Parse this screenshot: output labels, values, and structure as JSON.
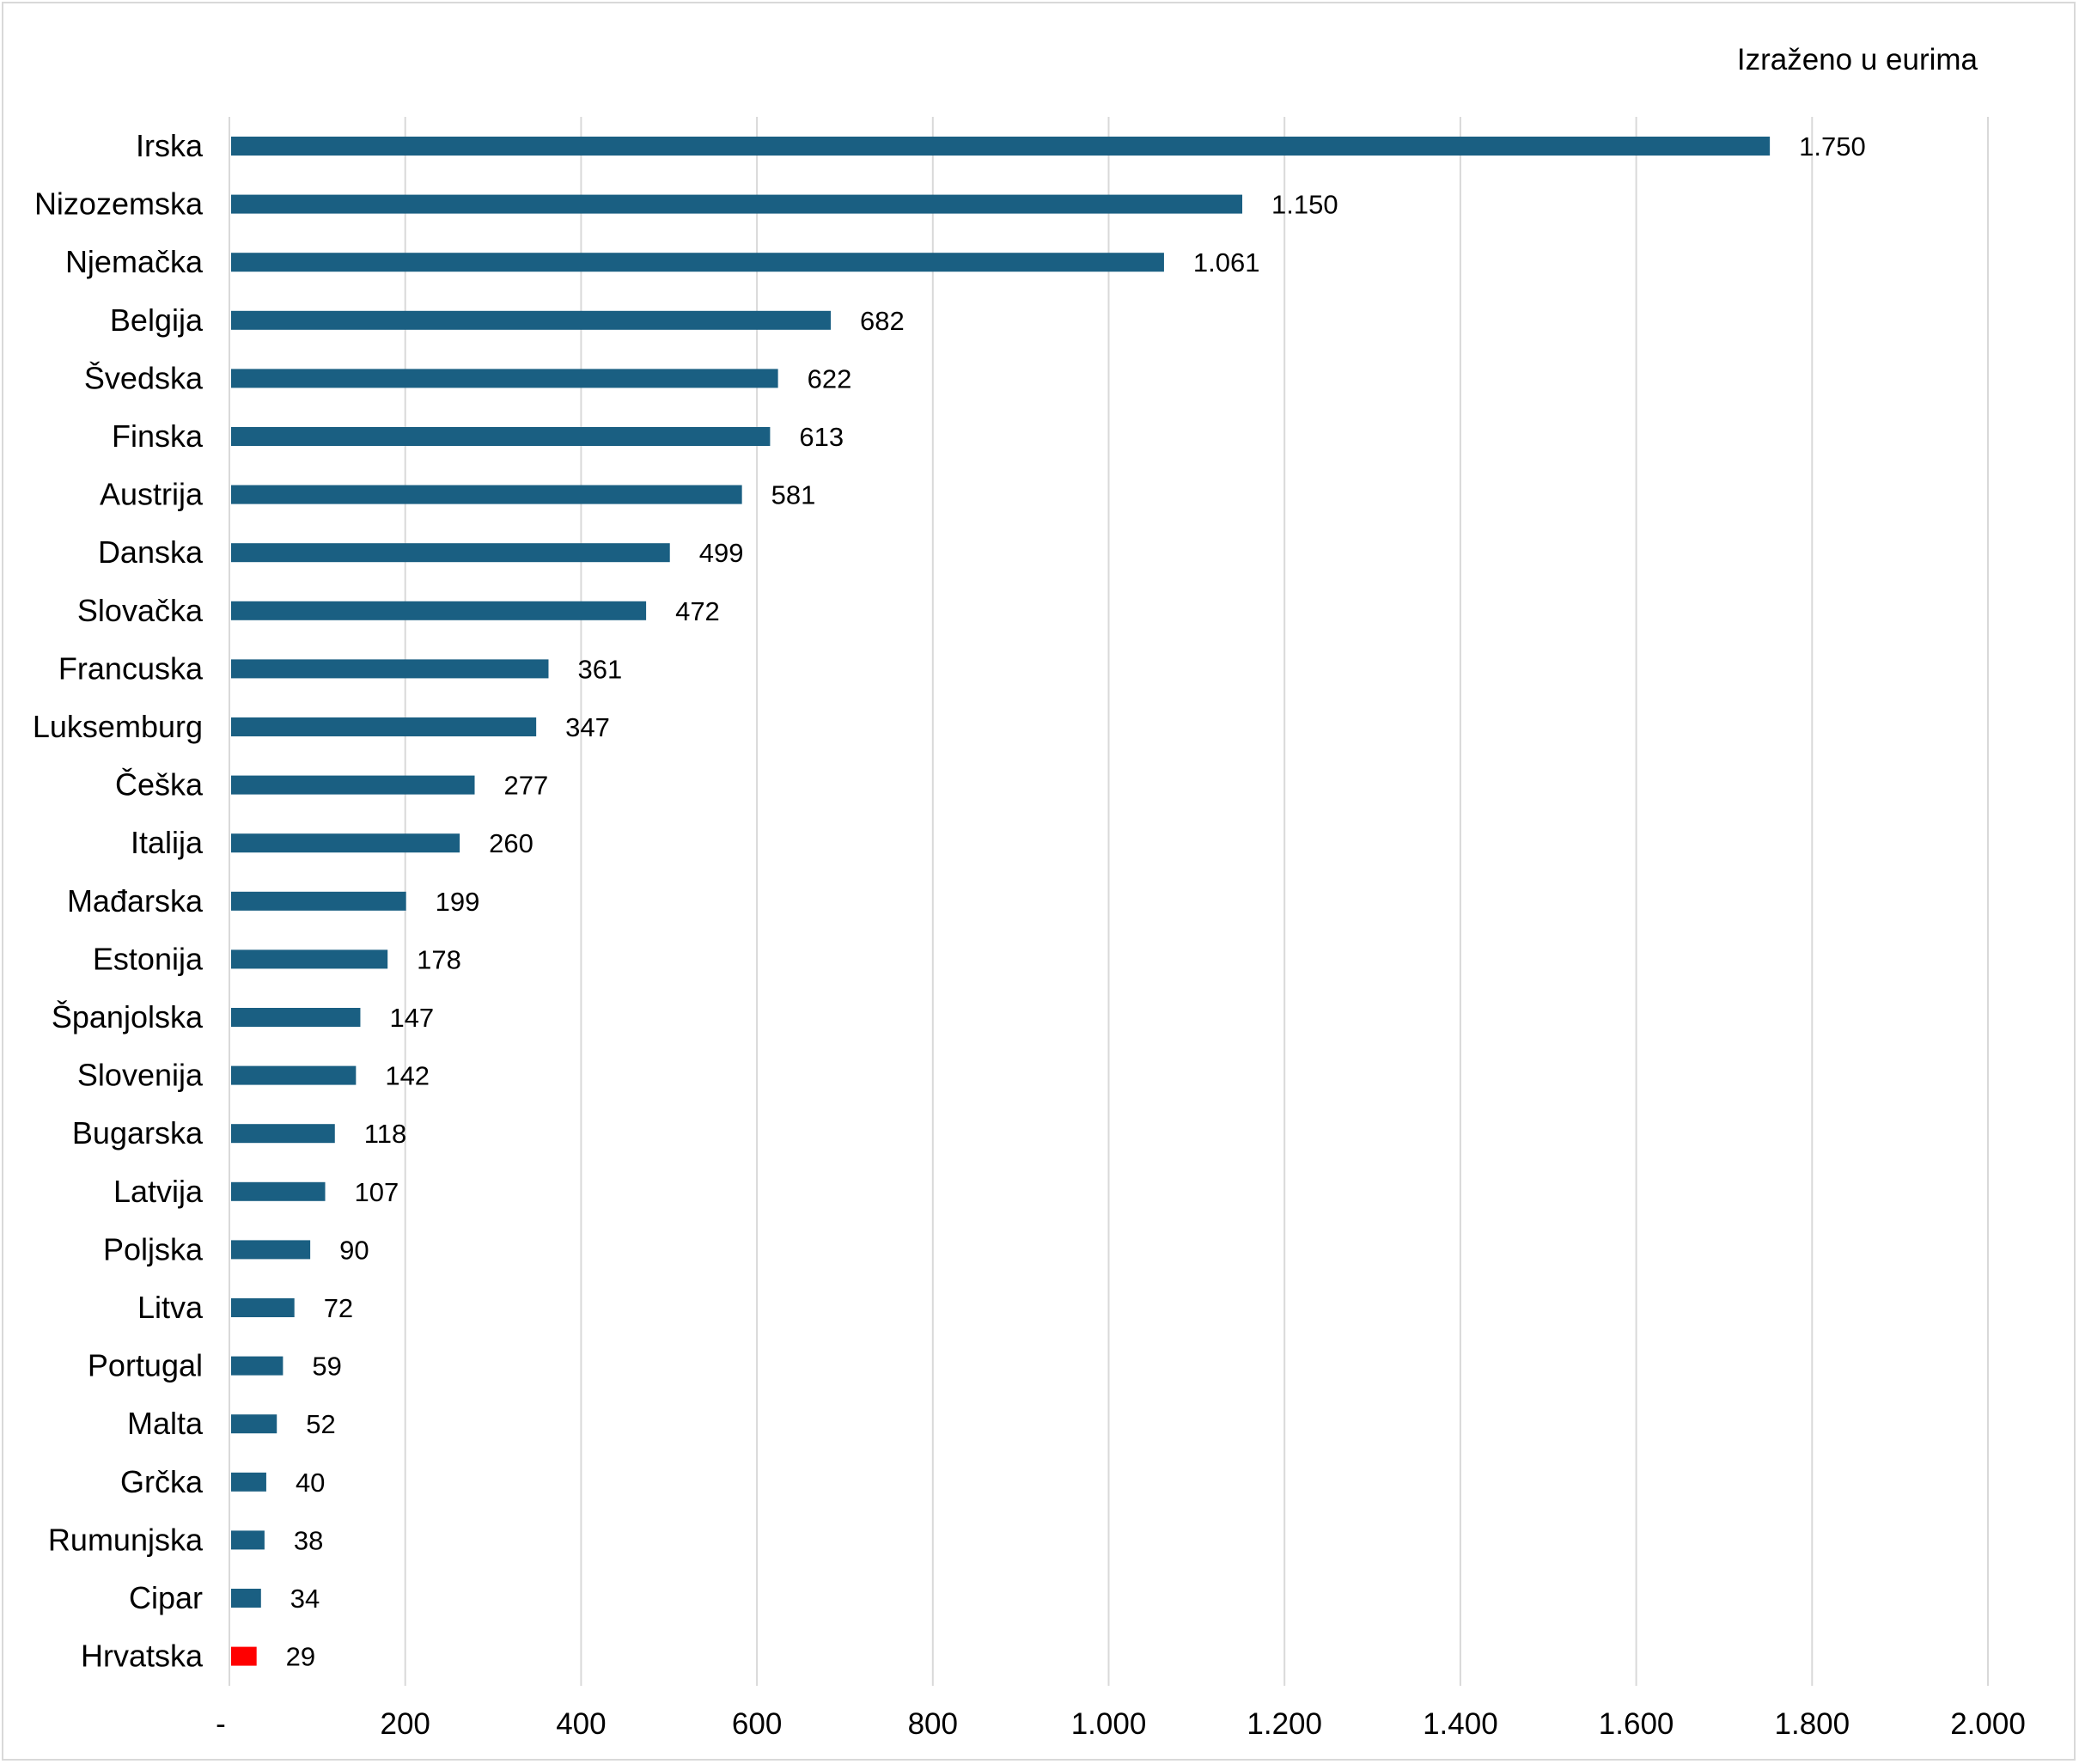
{
  "chart_data": {
    "type": "bar",
    "orientation": "horizontal",
    "note": "Izraženo u eurima",
    "categories": [
      "Irska",
      "Nizozemska",
      "Njemačka",
      "Belgija",
      "Švedska",
      "Finska",
      "Austrija",
      "Danska",
      "Slovačka",
      "Francuska",
      "Luksemburg",
      "Češka",
      "Italija",
      "Mađarska",
      "Estonija",
      "Španjolska",
      "Slovenija",
      "Bugarska",
      "Latvija",
      "Poljska",
      "Litva",
      "Portugal",
      "Malta",
      "Grčka",
      "Rumunjska",
      "Cipar",
      "Hrvatska"
    ],
    "values": [
      1750,
      1150,
      1061,
      682,
      622,
      613,
      581,
      499,
      472,
      361,
      347,
      277,
      260,
      199,
      178,
      147,
      142,
      118,
      107,
      90,
      72,
      59,
      52,
      40,
      38,
      34,
      29
    ],
    "value_labels": [
      "1.750",
      "1.150",
      "1.061",
      "682",
      "622",
      "613",
      "581",
      "499",
      "472",
      "361",
      "347",
      "277",
      "260",
      "199",
      "178",
      "147",
      "142",
      "118",
      "107",
      "90",
      "72",
      "59",
      "52",
      "40",
      "38",
      "34",
      "29"
    ],
    "xlim": [
      0,
      2000
    ],
    "x_ticks": [
      0,
      200,
      400,
      600,
      800,
      1000,
      1200,
      1400,
      1600,
      1800,
      2000
    ],
    "x_tick_labels": [
      "-",
      "200",
      "400",
      "600",
      "800",
      "1.000",
      "1.200",
      "1.400",
      "1.600",
      "1.800",
      "2.000"
    ],
    "grid": "vertical",
    "colors": {
      "bar": "#1a5f82",
      "highlight": "#ff0000",
      "grid": "#d9d9d9"
    },
    "highlight_category": "Hrvatska"
  }
}
